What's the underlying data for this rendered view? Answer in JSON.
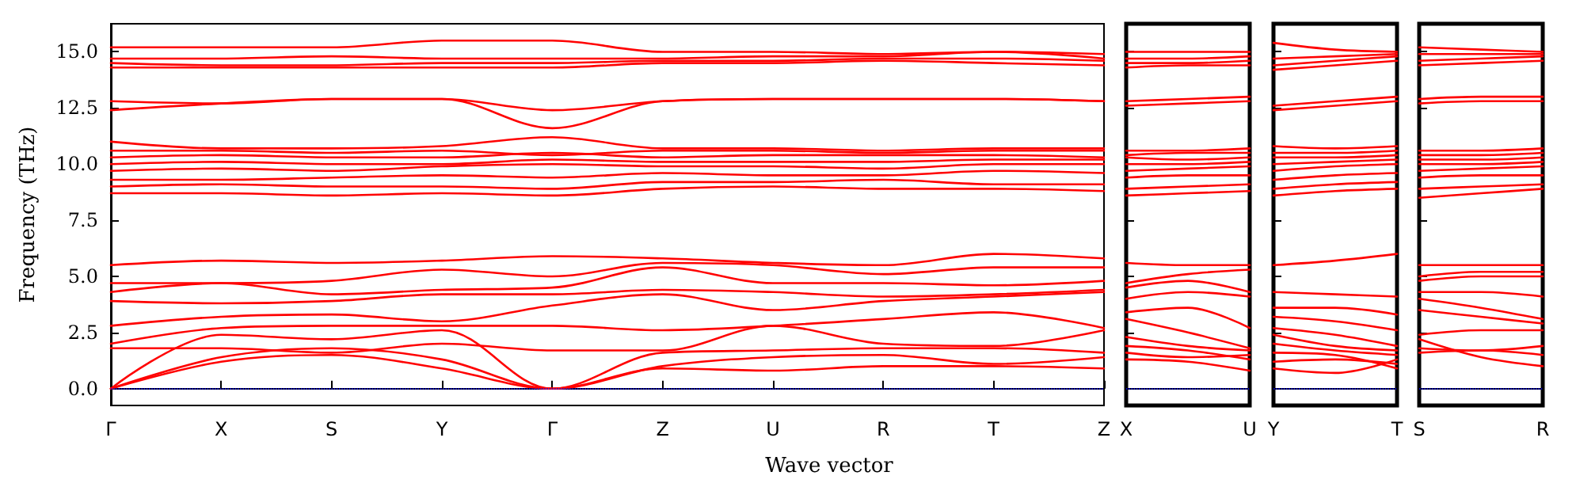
{
  "chart_data": [
    {
      "type": "line",
      "ylabel": "Frequency (THz)",
      "xlabel": "Wave vector",
      "categories": [
        "Γ",
        "X",
        "S",
        "Y",
        "Γ",
        "Z",
        "U",
        "R",
        "T",
        "Z"
      ],
      "ylim": [
        -0.75,
        16.25
      ],
      "yticks": [
        {
          "value": 0,
          "label": "0.0"
        },
        2.5,
        {
          "value": 5,
          "label": "5.0"
        },
        7.5,
        {
          "value": 10,
          "label": "10.0"
        },
        12.5,
        {
          "value": 15,
          "label": "15.0"
        }
      ],
      "grid": false,
      "marker": "none",
      "line_style": "solid",
      "ref_lines": [
        {
          "axis": "y",
          "value": 0,
          "color": "#0000ff",
          "line_style": "dotted"
        }
      ],
      "series": [
        {
          "color": "#ff0000",
          "values": [
            0,
            1.2,
            1.5,
            0.9,
            0,
            0.9,
            0.8,
            1.0,
            1.0,
            0.9
          ]
        },
        {
          "color": "#ff0000",
          "values": [
            0,
            1.4,
            1.8,
            1.3,
            0,
            1.0,
            1.4,
            1.5,
            1.1,
            1.4
          ]
        },
        {
          "color": "#ff0000",
          "values": [
            0,
            2.4,
            2.2,
            2.6,
            0,
            1.6,
            1.7,
            1.8,
            1.8,
            1.6
          ]
        },
        {
          "color": "#ff0000",
          "values": [
            1.8,
            1.8,
            1.6,
            2.0,
            1.7,
            1.7,
            2.8,
            2.0,
            1.9,
            2.6
          ]
        },
        {
          "color": "#ff0000",
          "values": [
            2.0,
            2.7,
            2.8,
            2.8,
            2.8,
            2.6,
            2.8,
            3.1,
            3.4,
            2.7
          ]
        },
        {
          "color": "#ff0000",
          "values": [
            2.8,
            3.2,
            3.3,
            3.0,
            3.7,
            4.2,
            3.5,
            3.9,
            4.1,
            4.3
          ]
        },
        {
          "color": "#ff0000",
          "values": [
            3.9,
            3.8,
            3.9,
            4.2,
            4.2,
            4.4,
            4.3,
            4.1,
            4.2,
            4.4
          ]
        },
        {
          "color": "#ff0000",
          "values": [
            4.3,
            4.7,
            4.2,
            4.4,
            4.5,
            5.4,
            4.7,
            4.7,
            4.6,
            4.8
          ]
        },
        {
          "color": "#ff0000",
          "values": [
            4.7,
            4.7,
            4.8,
            5.3,
            5.0,
            5.6,
            5.5,
            5.1,
            5.4,
            5.4
          ]
        },
        {
          "color": "#ff0000",
          "values": [
            5.5,
            5.7,
            5.6,
            5.7,
            5.9,
            5.8,
            5.6,
            5.5,
            6.0,
            5.8
          ]
        },
        {
          "color": "#ff0000",
          "values": [
            8.7,
            8.7,
            8.6,
            8.7,
            8.6,
            8.9,
            9.0,
            8.9,
            8.9,
            8.8
          ]
        },
        {
          "color": "#ff0000",
          "values": [
            9.0,
            9.1,
            9.0,
            9.0,
            8.9,
            9.2,
            9.2,
            9.3,
            9.1,
            9.1
          ]
        },
        {
          "color": "#ff0000",
          "values": [
            9.3,
            9.3,
            9.4,
            9.5,
            9.4,
            9.6,
            9.5,
            9.5,
            9.7,
            9.6
          ]
        },
        {
          "color": "#ff0000",
          "values": [
            9.7,
            9.8,
            9.7,
            9.9,
            10.0,
            9.9,
            9.9,
            9.8,
            10.0,
            10.0
          ]
        },
        {
          "color": "#ff0000",
          "values": [
            10.0,
            10.1,
            10.0,
            10.0,
            10.2,
            10.1,
            10.1,
            10.1,
            10.2,
            10.2
          ]
        },
        {
          "color": "#ff0000",
          "values": [
            10.3,
            10.4,
            10.3,
            10.3,
            10.5,
            10.3,
            10.4,
            10.4,
            10.4,
            10.3
          ]
        },
        {
          "color": "#ff0000",
          "values": [
            10.6,
            10.6,
            10.5,
            10.6,
            10.4,
            10.6,
            10.6,
            10.5,
            10.6,
            10.6
          ]
        },
        {
          "color": "#ff0000",
          "values": [
            11.0,
            10.7,
            10.7,
            10.8,
            11.2,
            10.7,
            10.7,
            10.6,
            10.7,
            10.7
          ]
        },
        {
          "color": "#ff0000",
          "values": [
            12.4,
            12.7,
            12.9,
            12.9,
            12.4,
            12.8,
            12.9,
            12.9,
            12.9,
            12.8
          ]
        },
        {
          "color": "#ff0000",
          "values": [
            12.8,
            12.7,
            12.9,
            12.9,
            11.6,
            12.8,
            12.9,
            12.9,
            12.9,
            12.8
          ]
        },
        {
          "color": "#ff0000",
          "values": [
            14.3,
            14.3,
            14.3,
            14.3,
            14.3,
            14.5,
            14.5,
            14.6,
            14.5,
            14.4
          ]
        },
        {
          "color": "#ff0000",
          "values": [
            14.5,
            14.4,
            14.4,
            14.5,
            14.5,
            14.6,
            14.6,
            14.7,
            14.7,
            14.6
          ]
        },
        {
          "color": "#ff0000",
          "values": [
            14.7,
            14.7,
            14.8,
            14.7,
            14.7,
            14.7,
            14.8,
            14.8,
            15.0,
            14.7
          ]
        },
        {
          "color": "#ff0000",
          "values": [
            15.2,
            15.2,
            15.2,
            15.5,
            15.5,
            15.0,
            15.0,
            14.9,
            15.0,
            14.9
          ]
        }
      ]
    },
    {
      "type": "line",
      "categories": [
        "X",
        null,
        "U"
      ],
      "ylim": [
        -0.75,
        16.25
      ],
      "yticks": [
        0,
        2.5,
        5,
        7.5,
        10,
        12.5,
        15
      ],
      "tick_labels": "x",
      "grid": false,
      "marker": "none",
      "line_style": "solid",
      "ref_lines": [
        {
          "axis": "y",
          "value": 0,
          "color": "#0000ff",
          "line_style": "dotted"
        }
      ],
      "series": [
        {
          "color": "#ff0000",
          "values": [
            1.3,
            1.2,
            0.8
          ]
        },
        {
          "color": "#ff0000",
          "values": [
            1.6,
            1.4,
            1.5
          ]
        },
        {
          "color": "#ff0000",
          "values": [
            1.9,
            1.7,
            1.3
          ]
        },
        {
          "color": "#ff0000",
          "values": [
            2.3,
            1.9,
            1.7
          ]
        },
        {
          "color": "#ff0000",
          "values": [
            3.1,
            2.5,
            1.8
          ]
        },
        {
          "color": "#ff0000",
          "values": [
            3.4,
            3.6,
            2.7
          ]
        },
        {
          "color": "#ff0000",
          "values": [
            4.0,
            4.3,
            4.1
          ]
        },
        {
          "color": "#ff0000",
          "values": [
            4.5,
            4.8,
            4.3
          ]
        },
        {
          "color": "#ff0000",
          "values": [
            4.7,
            5.1,
            5.3
          ]
        },
        {
          "color": "#ff0000",
          "values": [
            5.6,
            5.5,
            5.5
          ]
        },
        {
          "color": "#ff0000",
          "values": [
            8.6,
            8.7,
            8.8
          ]
        },
        {
          "color": "#ff0000",
          "values": [
            8.9,
            9.0,
            9.1
          ]
        },
        {
          "color": "#ff0000",
          "values": [
            9.4,
            9.5,
            9.5
          ]
        },
        {
          "color": "#ff0000",
          "values": [
            9.7,
            9.8,
            9.9
          ]
        },
        {
          "color": "#ff0000",
          "values": [
            10.0,
            10.0,
            10.1
          ]
        },
        {
          "color": "#ff0000",
          "values": [
            10.3,
            10.2,
            10.3
          ]
        },
        {
          "color": "#ff0000",
          "values": [
            10.4,
            10.5,
            10.5
          ]
        },
        {
          "color": "#ff0000",
          "values": [
            10.6,
            10.6,
            10.7
          ]
        },
        {
          "color": "#ff0000",
          "values": [
            12.6,
            12.7,
            12.8
          ]
        },
        {
          "color": "#ff0000",
          "values": [
            12.8,
            12.9,
            13.0
          ]
        },
        {
          "color": "#ff0000",
          "values": [
            14.3,
            14.4,
            14.4
          ]
        },
        {
          "color": "#ff0000",
          "values": [
            14.5,
            14.5,
            14.6
          ]
        },
        {
          "color": "#ff0000",
          "values": [
            14.7,
            14.7,
            14.8
          ]
        },
        {
          "color": "#ff0000",
          "values": [
            15.0,
            15.0,
            15.0
          ]
        }
      ]
    },
    {
      "type": "line",
      "categories": [
        "Y",
        null,
        "T"
      ],
      "ylim": [
        -0.75,
        16.25
      ],
      "yticks": [
        0,
        2.5,
        5,
        7.5,
        10,
        12.5,
        15
      ],
      "tick_labels": "x",
      "grid": false,
      "marker": "none",
      "line_style": "solid",
      "ref_lines": [
        {
          "axis": "y",
          "value": 0,
          "color": "#0000ff",
          "line_style": "dotted"
        }
      ],
      "series": [
        {
          "color": "#ff0000",
          "values": [
            0.9,
            0.7,
            1.3
          ]
        },
        {
          "color": "#ff0000",
          "values": [
            1.2,
            1.3,
            1.1
          ]
        },
        {
          "color": "#ff0000",
          "values": [
            1.6,
            1.5,
            0.9
          ]
        },
        {
          "color": "#ff0000",
          "values": [
            2.0,
            1.7,
            1.5
          ]
        },
        {
          "color": "#ff0000",
          "values": [
            2.4,
            1.9,
            1.7
          ]
        },
        {
          "color": "#ff0000",
          "values": [
            2.7,
            2.4,
            1.9
          ]
        },
        {
          "color": "#ff0000",
          "values": [
            3.2,
            3.0,
            2.6
          ]
        },
        {
          "color": "#ff0000",
          "values": [
            3.6,
            3.6,
            3.3
          ]
        },
        {
          "color": "#ff0000",
          "values": [
            4.3,
            4.2,
            4.1
          ]
        },
        {
          "color": "#ff0000",
          "values": [
            5.5,
            5.7,
            6.0
          ]
        },
        {
          "color": "#ff0000",
          "values": [
            8.6,
            8.8,
            8.9
          ]
        },
        {
          "color": "#ff0000",
          "values": [
            8.9,
            9.1,
            9.2
          ]
        },
        {
          "color": "#ff0000",
          "values": [
            9.3,
            9.5,
            9.6
          ]
        },
        {
          "color": "#ff0000",
          "values": [
            9.7,
            9.9,
            10.0
          ]
        },
        {
          "color": "#ff0000",
          "values": [
            10.0,
            10.1,
            10.2
          ]
        },
        {
          "color": "#ff0000",
          "values": [
            10.3,
            10.3,
            10.4
          ]
        },
        {
          "color": "#ff0000",
          "values": [
            10.5,
            10.5,
            10.6
          ]
        },
        {
          "color": "#ff0000",
          "values": [
            10.8,
            10.7,
            10.8
          ]
        },
        {
          "color": "#ff0000",
          "values": [
            12.4,
            12.6,
            12.8
          ]
        },
        {
          "color": "#ff0000",
          "values": [
            12.6,
            12.8,
            13.0
          ]
        },
        {
          "color": "#ff0000",
          "values": [
            14.2,
            14.4,
            14.6
          ]
        },
        {
          "color": "#ff0000",
          "values": [
            14.4,
            14.6,
            14.8
          ]
        },
        {
          "color": "#ff0000",
          "values": [
            14.7,
            14.8,
            14.9
          ]
        },
        {
          "color": "#ff0000",
          "values": [
            15.4,
            15.1,
            15.0
          ]
        }
      ]
    },
    {
      "type": "line",
      "categories": [
        "S",
        null,
        "R"
      ],
      "ylim": [
        -0.75,
        16.25
      ],
      "yticks": [
        0,
        2.5,
        5,
        7.5,
        10,
        12.5,
        15
      ],
      "tick_labels": "x",
      "grid": false,
      "marker": "none",
      "line_style": "solid",
      "ref_lines": [
        {
          "axis": "y",
          "value": 0,
          "color": "#0000ff",
          "line_style": "dotted"
        }
      ],
      "series": [
        {
          "color": "#ff0000",
          "values": [
            1.6,
            1.7,
            1.5
          ]
        },
        {
          "color": "#ff0000",
          "values": [
            1.8,
            1.7,
            1.9
          ]
        },
        {
          "color": "#ff0000",
          "values": [
            2.2,
            1.4,
            1.0
          ]
        },
        {
          "color": "#ff0000",
          "values": [
            2.4,
            2.6,
            2.6
          ]
        },
        {
          "color": "#ff0000",
          "values": [
            3.5,
            3.2,
            2.9
          ]
        },
        {
          "color": "#ff0000",
          "values": [
            4.0,
            3.6,
            3.1
          ]
        },
        {
          "color": "#ff0000",
          "values": [
            4.3,
            4.3,
            4.1
          ]
        },
        {
          "color": "#ff0000",
          "values": [
            4.8,
            5.0,
            5.0
          ]
        },
        {
          "color": "#ff0000",
          "values": [
            5.0,
            5.2,
            5.2
          ]
        },
        {
          "color": "#ff0000",
          "values": [
            5.5,
            5.5,
            5.5
          ]
        },
        {
          "color": "#ff0000",
          "values": [
            8.5,
            8.7,
            8.9
          ]
        },
        {
          "color": "#ff0000",
          "values": [
            8.9,
            9.0,
            9.1
          ]
        },
        {
          "color": "#ff0000",
          "values": [
            9.4,
            9.5,
            9.5
          ]
        },
        {
          "color": "#ff0000",
          "values": [
            9.7,
            9.8,
            9.9
          ]
        },
        {
          "color": "#ff0000",
          "values": [
            10.0,
            10.0,
            10.1
          ]
        },
        {
          "color": "#ff0000",
          "values": [
            10.2,
            10.2,
            10.3
          ]
        },
        {
          "color": "#ff0000",
          "values": [
            10.4,
            10.4,
            10.5
          ]
        },
        {
          "color": "#ff0000",
          "values": [
            10.6,
            10.6,
            10.7
          ]
        },
        {
          "color": "#ff0000",
          "values": [
            12.7,
            12.8,
            12.8
          ]
        },
        {
          "color": "#ff0000",
          "values": [
            12.9,
            13.0,
            13.0
          ]
        },
        {
          "color": "#ff0000",
          "values": [
            14.4,
            14.5,
            14.6
          ]
        },
        {
          "color": "#ff0000",
          "values": [
            14.6,
            14.7,
            14.8
          ]
        },
        {
          "color": "#ff0000",
          "values": [
            14.9,
            14.9,
            14.9
          ]
        },
        {
          "color": "#ff0000",
          "values": [
            15.2,
            15.1,
            15.0
          ]
        }
      ]
    }
  ]
}
